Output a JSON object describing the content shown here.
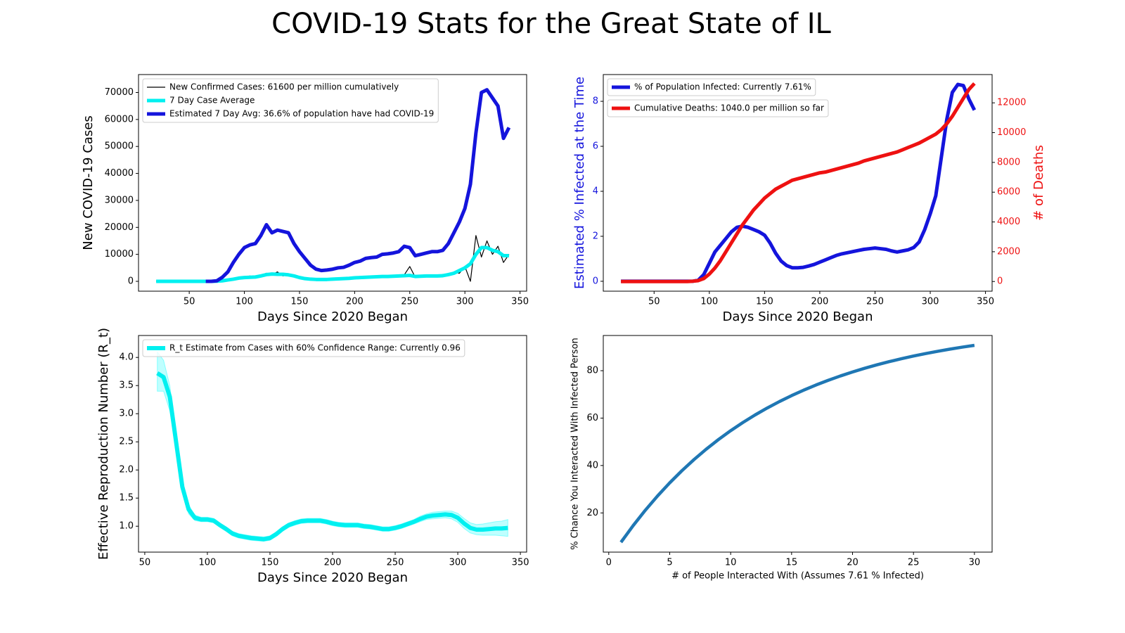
{
  "title": "COVID-19 Stats for the Great State of IL",
  "chart_data": [
    {
      "type": "line",
      "xlabel": "Days Since 2020 Began",
      "ylabel": "New COVID-19 Cases",
      "legend": "upper left",
      "xlim": [
        4,
        356
      ],
      "xticks": [
        50,
        100,
        150,
        200,
        250,
        300,
        350
      ],
      "ylim": [
        -3650,
        76650
      ],
      "yticks": [
        0,
        10000,
        20000,
        30000,
        40000,
        50000,
        60000,
        70000
      ],
      "x": [
        20,
        25,
        30,
        35,
        40,
        45,
        50,
        55,
        60,
        65,
        70,
        75,
        80,
        85,
        90,
        95,
        100,
        105,
        110,
        115,
        120,
        125,
        130,
        135,
        140,
        145,
        150,
        155,
        160,
        165,
        170,
        175,
        180,
        185,
        190,
        195,
        200,
        205,
        210,
        215,
        220,
        225,
        230,
        235,
        240,
        245,
        250,
        255,
        260,
        265,
        270,
        275,
        280,
        285,
        290,
        295,
        300,
        305,
        310,
        315,
        320,
        325,
        330,
        335,
        340
      ],
      "series": [
        {
          "name": "New Confirmed Cases: 61600 per million cumulatively",
          "color": "#000000",
          "linewidth": 1.2,
          "values": [
            0,
            0,
            0,
            0,
            0,
            0,
            0,
            0,
            0,
            0,
            0,
            100,
            300,
            800,
            1000,
            1500,
            1200,
            2000,
            1400,
            2200,
            3000,
            2400,
            3500,
            2000,
            2800,
            1800,
            1600,
            900,
            700,
            800,
            600,
            900,
            700,
            1100,
            900,
            1300,
            1200,
            1600,
            1400,
            1800,
            1500,
            2000,
            1700,
            2200,
            1900,
            2400,
            5500,
            1500,
            2100,
            1800,
            2300,
            1900,
            2600,
            2200,
            3500,
            3000,
            5500,
            0,
            17000,
            9000,
            15000,
            10000,
            13000,
            7000,
            10000
          ]
        },
        {
          "name": "7 Day Case Average",
          "color": "#00f0f0",
          "linewidth": 5,
          "values": [
            0,
            0,
            0,
            0,
            0,
            0,
            0,
            0,
            0,
            0,
            0,
            50,
            200,
            500,
            800,
            1200,
            1400,
            1500,
            1600,
            2000,
            2500,
            2700,
            2600,
            2600,
            2400,
            2000,
            1400,
            1000,
            800,
            700,
            700,
            700,
            800,
            900,
            1000,
            1100,
            1300,
            1400,
            1500,
            1600,
            1700,
            1800,
            1800,
            1900,
            2000,
            2100,
            2200,
            1800,
            1900,
            2000,
            2000,
            2000,
            2100,
            2500,
            3000,
            4000,
            5000,
            6500,
            10000,
            12500,
            12500,
            11500,
            11000,
            9500,
            9500
          ]
        },
        {
          "name": "Estimated 7 Day Avg: 36.6% of population have had COVID-19",
          "color": "#1414dc",
          "linewidth": 5,
          "values": [
            null,
            null,
            null,
            null,
            null,
            null,
            null,
            null,
            null,
            0,
            0,
            200,
            1500,
            3500,
            7000,
            10000,
            12500,
            13500,
            14000,
            17000,
            21000,
            18000,
            19000,
            18500,
            18000,
            14000,
            11000,
            8500,
            6000,
            4500,
            4000,
            4200,
            4500,
            5000,
            5200,
            6000,
            7000,
            7500,
            8500,
            8800,
            9000,
            10000,
            10200,
            10500,
            11000,
            13000,
            12500,
            9500,
            10000,
            10500,
            11000,
            11000,
            11500,
            14000,
            18000,
            22000,
            27000,
            36000,
            55000,
            70000,
            71000,
            68000,
            65000,
            53000,
            57000
          ]
        }
      ]
    },
    {
      "type": "line",
      "xlabel": "Days Since 2020 Began",
      "ylabel": "Estimated % Infected at the Time",
      "y2label": "# of Deaths",
      "legend": "upper left",
      "xlim": [
        4,
        356
      ],
      "xticks": [
        50,
        100,
        150,
        200,
        250,
        300,
        350
      ],
      "ylim": [
        -0.44,
        9.19
      ],
      "yticks": [
        0,
        2,
        4,
        6,
        8
      ],
      "y2lim": [
        -650,
        13900
      ],
      "y2ticks": [
        0,
        2000,
        4000,
        6000,
        8000,
        10000,
        12000
      ],
      "x": [
        20,
        25,
        30,
        35,
        40,
        45,
        50,
        55,
        60,
        65,
        70,
        75,
        80,
        85,
        90,
        95,
        100,
        105,
        110,
        115,
        120,
        125,
        130,
        135,
        140,
        145,
        150,
        155,
        160,
        165,
        170,
        175,
        180,
        185,
        190,
        195,
        200,
        205,
        210,
        215,
        220,
        225,
        230,
        235,
        240,
        245,
        250,
        255,
        260,
        265,
        270,
        275,
        280,
        285,
        290,
        295,
        300,
        305,
        310,
        315,
        320,
        325,
        330,
        335,
        340
      ],
      "series": [
        {
          "name": "% of Population Infected: Currently 7.61%",
          "color": "#1414dc",
          "linewidth": 5,
          "values": [
            0,
            0,
            0,
            0,
            0,
            0,
            0,
            0,
            0,
            0,
            0,
            0,
            0,
            0,
            0.05,
            0.3,
            0.8,
            1.3,
            1.6,
            1.9,
            2.2,
            2.4,
            2.45,
            2.4,
            2.3,
            2.2,
            2.05,
            1.7,
            1.25,
            0.9,
            0.7,
            0.6,
            0.6,
            0.62,
            0.68,
            0.75,
            0.85,
            0.95,
            1.05,
            1.15,
            1.22,
            1.27,
            1.32,
            1.37,
            1.42,
            1.45,
            1.48,
            1.45,
            1.42,
            1.35,
            1.3,
            1.35,
            1.4,
            1.5,
            1.75,
            2.3,
            3.0,
            3.8,
            5.5,
            7.2,
            8.4,
            8.75,
            8.7,
            8.1,
            7.61
          ]
        },
        {
          "name": "Cumulative Deaths: 1040.0 per million so far",
          "color": "#ee1111",
          "linewidth": 5,
          "axis": "y2",
          "values": [
            0,
            0,
            0,
            0,
            0,
            0,
            0,
            0,
            0,
            0,
            0,
            0,
            0,
            20,
            60,
            200,
            500,
            900,
            1400,
            2000,
            2600,
            3200,
            3800,
            4300,
            4800,
            5200,
            5600,
            5900,
            6200,
            6400,
            6600,
            6800,
            6900,
            7000,
            7100,
            7200,
            7300,
            7350,
            7450,
            7550,
            7650,
            7750,
            7850,
            7950,
            8100,
            8200,
            8300,
            8400,
            8500,
            8600,
            8700,
            8850,
            9000,
            9150,
            9300,
            9500,
            9700,
            9900,
            10200,
            10600,
            11100,
            11700,
            12300,
            12900,
            13300
          ]
        }
      ]
    },
    {
      "type": "line",
      "xlabel": "Days Since 2020 Began",
      "ylabel": "Effective Reproduction Number (R_t)",
      "legend": "upper left",
      "xlim": [
        45,
        355
      ],
      "xticks": [
        50,
        100,
        150,
        200,
        250,
        300,
        350
      ],
      "ylim": [
        0.54,
        4.39
      ],
      "yticks": [
        {
          "value": 1,
          "label": "1.0"
        },
        1.5,
        {
          "value": 2,
          "label": "2.0"
        },
        2.5,
        {
          "value": 3,
          "label": "3.0"
        },
        3.5,
        {
          "value": 4,
          "label": "4.0"
        }
      ],
      "x": [
        60,
        65,
        70,
        75,
        80,
        85,
        90,
        95,
        100,
        105,
        110,
        115,
        120,
        125,
        130,
        135,
        140,
        145,
        150,
        155,
        160,
        165,
        170,
        175,
        180,
        185,
        190,
        195,
        200,
        205,
        210,
        215,
        220,
        225,
        230,
        235,
        240,
        245,
        250,
        255,
        260,
        265,
        270,
        275,
        280,
        285,
        290,
        295,
        300,
        305,
        310,
        315,
        320,
        325,
        330,
        335,
        340
      ],
      "confidence_band": {
        "color": "#00ffff",
        "lower": [
          3.4,
          3.4,
          3.05,
          2.35,
          1.6,
          1.22,
          1.1,
          1.08,
          1.08,
          1.06,
          0.98,
          0.91,
          0.83,
          0.79,
          0.77,
          0.75,
          0.74,
          0.73,
          0.75,
          0.82,
          0.91,
          0.98,
          1.02,
          1.05,
          1.06,
          1.06,
          1.06,
          1.04,
          1.01,
          0.99,
          0.98,
          0.98,
          0.98,
          0.96,
          0.95,
          0.93,
          0.91,
          0.91,
          0.93,
          0.96,
          1.0,
          1.04,
          1.08,
          1.12,
          1.13,
          1.14,
          1.15,
          1.13,
          1.07,
          0.96,
          0.88,
          0.85,
          0.84,
          0.84,
          0.84,
          0.83,
          0.82
        ],
        "upper": [
          4.1,
          3.95,
          3.5,
          2.65,
          1.8,
          1.38,
          1.2,
          1.16,
          1.16,
          1.14,
          1.06,
          0.99,
          0.91,
          0.87,
          0.85,
          0.83,
          0.82,
          0.81,
          0.83,
          0.9,
          0.99,
          1.06,
          1.1,
          1.13,
          1.14,
          1.14,
          1.14,
          1.12,
          1.09,
          1.07,
          1.06,
          1.06,
          1.06,
          1.04,
          1.03,
          1.01,
          0.99,
          0.99,
          1.01,
          1.04,
          1.08,
          1.12,
          1.18,
          1.22,
          1.25,
          1.26,
          1.27,
          1.27,
          1.23,
          1.14,
          1.06,
          1.03,
          1.04,
          1.06,
          1.08,
          1.09,
          1.12
        ]
      },
      "series": [
        {
          "name": "R_t Estimate from Cases with 60% Confidence Range: Currently 0.96",
          "color": "#00f0f0",
          "linewidth": 6,
          "values": [
            3.72,
            3.65,
            3.3,
            2.5,
            1.7,
            1.3,
            1.15,
            1.12,
            1.12,
            1.1,
            1.02,
            0.95,
            0.87,
            0.83,
            0.81,
            0.79,
            0.78,
            0.77,
            0.79,
            0.86,
            0.95,
            1.02,
            1.06,
            1.09,
            1.1,
            1.1,
            1.1,
            1.08,
            1.05,
            1.03,
            1.02,
            1.02,
            1.02,
            1.0,
            0.99,
            0.97,
            0.95,
            0.95,
            0.97,
            1.0,
            1.04,
            1.08,
            1.13,
            1.17,
            1.19,
            1.2,
            1.21,
            1.2,
            1.15,
            1.05,
            0.97,
            0.94,
            0.94,
            0.95,
            0.96,
            0.96,
            0.97
          ]
        }
      ]
    },
    {
      "type": "line",
      "xlabel": "# of People Interacted With (Assumes 7.61 % Infected)",
      "ylabel": "% Chance You Interacted With Infected Person",
      "xlim": [
        -0.45,
        31.45
      ],
      "xticks": [
        0,
        5,
        10,
        15,
        20,
        25,
        30
      ],
      "ylim": [
        3.46,
        94.85
      ],
      "yticks": [
        20,
        40,
        60,
        80
      ],
      "x": [
        1,
        2,
        3,
        4,
        5,
        6,
        7,
        8,
        9,
        10,
        11,
        12,
        13,
        14,
        15,
        16,
        17,
        18,
        19,
        20,
        21,
        22,
        23,
        24,
        25,
        26,
        27,
        28,
        29,
        30
      ],
      "series": [
        {
          "color": "#1f77b4",
          "linewidth": 4.5,
          "values": [
            7.61,
            14.64,
            21.14,
            27.14,
            32.68,
            37.81,
            42.54,
            46.91,
            50.95,
            54.69,
            58.13,
            61.32,
            64.26,
            66.98,
            69.49,
            71.82,
            73.96,
            75.94,
            77.77,
            79.46,
            81.03,
            82.47,
            83.8,
            85.04,
            86.18,
            87.23,
            88.2,
            89.1,
            89.93,
            90.69
          ]
        }
      ]
    }
  ]
}
